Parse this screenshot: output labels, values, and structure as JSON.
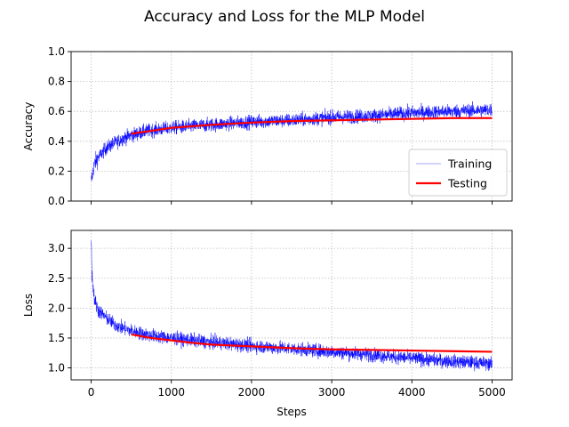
{
  "figure_title": "Accuracy and Loss for the MLP Model",
  "colors": {
    "training": "#0000ff",
    "testing": "#ff0000",
    "grid": "#b0b0b0"
  },
  "chart_data": [
    {
      "type": "line",
      "title": "",
      "xlabel": "",
      "ylabel": "Accuracy",
      "xlim": [
        -250,
        5250
      ],
      "ylim": [
        0.0,
        1.0
      ],
      "xticks": [
        0,
        1000,
        2000,
        3000,
        4000,
        5000
      ],
      "show_xtick_labels": false,
      "yticks": [
        "0.0",
        "0.2",
        "0.4",
        "0.6",
        "0.8",
        "1.0"
      ],
      "grid": true,
      "legend": {
        "position": "lower-right",
        "entries": [
          "Training",
          "Testing"
        ]
      },
      "series": [
        {
          "name": "Training",
          "style": "thin-noisy",
          "color": "#0000ff",
          "x": [
            0,
            20,
            50,
            100,
            200,
            300,
            400,
            500,
            700,
            1000,
            1500,
            2000,
            2500,
            3000,
            3500,
            4000,
            4500,
            5000
          ],
          "y": [
            0.12,
            0.2,
            0.26,
            0.3,
            0.36,
            0.39,
            0.42,
            0.44,
            0.47,
            0.49,
            0.51,
            0.53,
            0.54,
            0.56,
            0.57,
            0.59,
            0.6,
            0.61
          ],
          "noise": 0.045
        },
        {
          "name": "Testing",
          "style": "thick",
          "color": "#ff0000",
          "x": [
            500,
            750,
            1000,
            1250,
            1500,
            2000,
            2500,
            3000,
            3500,
            4000,
            4500,
            5000
          ],
          "y": [
            0.45,
            0.47,
            0.49,
            0.5,
            0.51,
            0.525,
            0.535,
            0.54,
            0.545,
            0.55,
            0.555,
            0.555
          ]
        }
      ]
    },
    {
      "type": "line",
      "title": "",
      "xlabel": "Steps",
      "ylabel": "Loss",
      "xlim": [
        -250,
        5250
      ],
      "ylim": [
        0.8,
        3.3
      ],
      "xticks": [
        "0",
        "1000",
        "2000",
        "3000",
        "4000",
        "5000"
      ],
      "yticks": [
        "1.0",
        "1.5",
        "2.0",
        "2.5",
        "3.0"
      ],
      "grid": true,
      "series": [
        {
          "name": "Training",
          "style": "thin-noisy",
          "color": "#0000ff",
          "x": [
            0,
            10,
            30,
            60,
            100,
            200,
            300,
            400,
            500,
            700,
            1000,
            1500,
            2000,
            2500,
            3000,
            3500,
            4000,
            4500,
            5000
          ],
          "y": [
            3.2,
            2.6,
            2.25,
            2.05,
            1.95,
            1.82,
            1.72,
            1.66,
            1.62,
            1.55,
            1.5,
            1.43,
            1.37,
            1.32,
            1.27,
            1.22,
            1.16,
            1.11,
            1.07
          ],
          "noise": 0.11
        },
        {
          "name": "Testing",
          "style": "thick",
          "color": "#ff0000",
          "x": [
            500,
            750,
            1000,
            1250,
            1500,
            2000,
            2500,
            3000,
            3500,
            4000,
            4500,
            5000
          ],
          "y": [
            1.56,
            1.5,
            1.46,
            1.42,
            1.39,
            1.36,
            1.33,
            1.31,
            1.3,
            1.29,
            1.28,
            1.27
          ]
        }
      ]
    }
  ]
}
